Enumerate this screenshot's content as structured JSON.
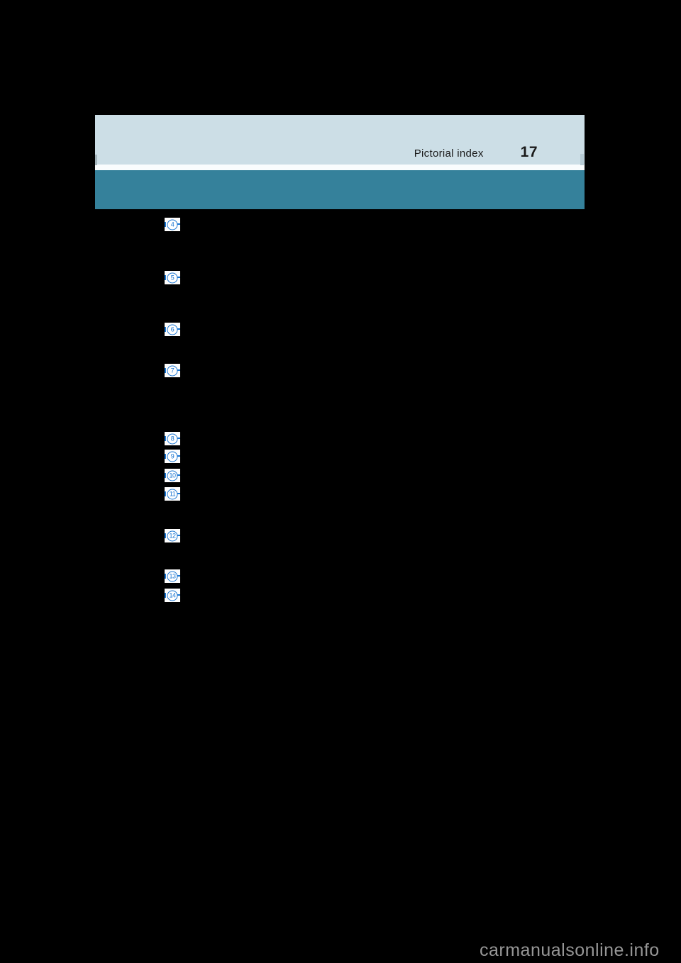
{
  "header": {
    "section_title": "Pictorial index",
    "page_number": "17"
  },
  "markers": [
    {
      "label": "4"
    },
    {
      "label": "5"
    },
    {
      "label": "6"
    },
    {
      "label": "7"
    },
    {
      "label": "8"
    },
    {
      "label": "9"
    },
    {
      "label": "10"
    },
    {
      "label": "11"
    },
    {
      "label": "12"
    },
    {
      "label": "13"
    },
    {
      "label": "14"
    }
  ],
  "watermark": {
    "text": "carmanualsonline.info"
  },
  "colors": {
    "page_background": "#000000",
    "header_light_blue": "#ccdee6",
    "header_teal": "#35819b",
    "divider_white": "#f9fcfd",
    "marker_blue": "#1b76d2",
    "text_black": "#1a1a1a",
    "watermark_gray": "#969696"
  }
}
